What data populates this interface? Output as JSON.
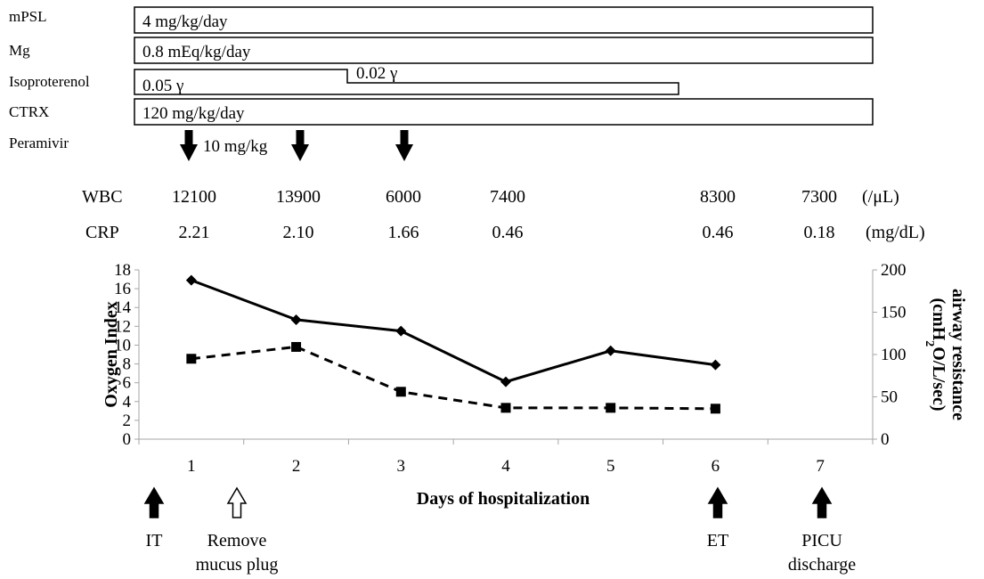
{
  "medications": {
    "mpsl": {
      "name": "mPSL",
      "dose": "4 mg/kg/day"
    },
    "mg": {
      "name": "Mg",
      "dose": "0.8 mEq/kg/day"
    },
    "isoproterenol": {
      "name": "Isoproterenol",
      "dose1": "0.05 γ",
      "dose2": "0.02 γ"
    },
    "ctrx": {
      "name": "CTRX",
      "dose": "120 mg/kg/day"
    },
    "peramivir": {
      "name": "Peramivir",
      "dose": "10 mg/kg"
    }
  },
  "labs": {
    "wbc": {
      "label": "WBC",
      "values": [
        "12100",
        "13900",
        "6000",
        "7400",
        "",
        "8300",
        "7300"
      ],
      "unit": "(/μL)"
    },
    "crp": {
      "label": "CRP",
      "values": [
        "2.21",
        "2.10",
        "1.66",
        "0.46",
        "",
        "0.46",
        "0.18"
      ],
      "unit": "(mg/dL)"
    }
  },
  "chart_data": {
    "type": "line",
    "categories": [
      "1",
      "2",
      "3",
      "4",
      "5",
      "6",
      "7"
    ],
    "xlabel": "Days of hospitalization",
    "ylabel": "Oxygen Index",
    "ylabel_right_line1": "airway resistance",
    "ylabel_right_line2_parts": [
      "(cmH",
      "2",
      "O/L/sec)"
    ],
    "ylim": [
      0,
      18
    ],
    "ylim_right": [
      0,
      200
    ],
    "yticks": [
      "0",
      "2",
      "4",
      "6",
      "8",
      "10",
      "12",
      "14",
      "16",
      "18"
    ],
    "yticks_right": [
      "0",
      "50",
      "100",
      "150",
      "200"
    ],
    "grid": false,
    "series": [
      {
        "axis": "left",
        "style": "solid",
        "marker": "diamond",
        "values": [
          16.9,
          12.7,
          11.5,
          6.1,
          9.4,
          7.9,
          null
        ]
      },
      {
        "axis": "right",
        "style": "dashed",
        "marker": "square",
        "values": [
          95,
          109,
          56,
          37,
          37,
          36,
          null
        ]
      }
    ]
  },
  "annotations": [
    {
      "label_line1": "IT",
      "label_line2": "",
      "style": "filled"
    },
    {
      "label_line1": "Remove",
      "label_line2": "mucus plug",
      "style": "open"
    },
    {
      "label_line1": "ET",
      "label_line2": "",
      "style": "filled"
    },
    {
      "label_line1": "PICU",
      "label_line2": "discharge",
      "style": "filled"
    }
  ]
}
